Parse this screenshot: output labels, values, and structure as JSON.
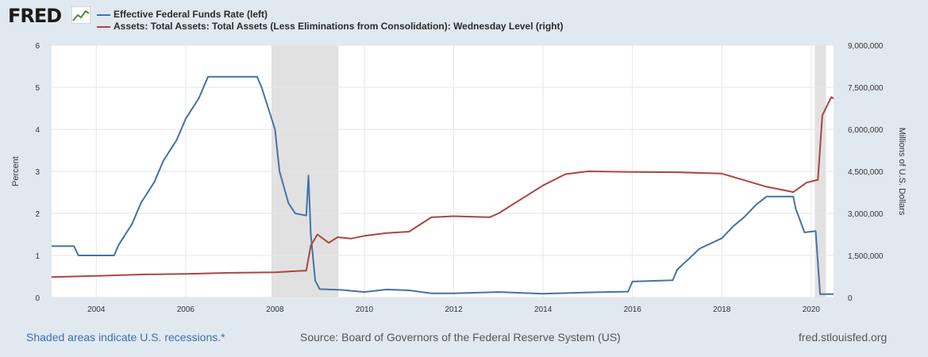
{
  "header": {
    "logo_text": "FRED"
  },
  "footer": {
    "recession_note": "Shaded areas indicate U.S. recessions.*",
    "source": "Source: Board of Governors of the Federal Reserve System (US)",
    "site": "fred.stlouisfed.org"
  },
  "colors": {
    "series_left": "#4572a7",
    "series_right": "#aa4643",
    "recession": "#e1e1e1",
    "plot_bg": "#ffffff",
    "page_bg": "#e1e9f0"
  },
  "chart_data": {
    "type": "line",
    "xlim": [
      2003.0,
      2020.5
    ],
    "x_ticks": [
      "2004",
      "2006",
      "2008",
      "2010",
      "2012",
      "2014",
      "2016",
      "2018",
      "2020"
    ],
    "y_left": {
      "label": "Percent",
      "lim": [
        0,
        6
      ],
      "ticks": [
        "0",
        "1",
        "2",
        "3",
        "4",
        "5",
        "6"
      ]
    },
    "y_right": {
      "label": "Millions of U.S. Dollars",
      "lim": [
        0,
        9000000
      ],
      "ticks": [
        "0",
        "1,500,000",
        "3,000,000",
        "4,500,000",
        "6,000,000",
        "7,500,000",
        "9,000,000"
      ]
    },
    "recessions": [
      [
        2007.92,
        2009.42
      ],
      [
        2020.08,
        2020.33
      ]
    ],
    "grid": true,
    "legend_position": "top-left",
    "series": [
      {
        "name": "Effective Federal Funds Rate (left)",
        "axis": "left",
        "color": "#4572a7",
        "points": [
          [
            2003.0,
            1.22
          ],
          [
            2003.5,
            1.22
          ],
          [
            2003.6,
            1.0
          ],
          [
            2004.4,
            1.0
          ],
          [
            2004.5,
            1.25
          ],
          [
            2004.8,
            1.75
          ],
          [
            2005.0,
            2.25
          ],
          [
            2005.3,
            2.75
          ],
          [
            2005.5,
            3.25
          ],
          [
            2005.8,
            3.75
          ],
          [
            2006.0,
            4.25
          ],
          [
            2006.3,
            4.75
          ],
          [
            2006.5,
            5.25
          ],
          [
            2007.6,
            5.25
          ],
          [
            2007.7,
            5.0
          ],
          [
            2007.85,
            4.5
          ],
          [
            2008.0,
            4.0
          ],
          [
            2008.1,
            3.0
          ],
          [
            2008.3,
            2.25
          ],
          [
            2008.45,
            2.0
          ],
          [
            2008.7,
            1.95
          ],
          [
            2008.75,
            2.9
          ],
          [
            2008.8,
            1.5
          ],
          [
            2008.9,
            0.4
          ],
          [
            2009.0,
            0.2
          ],
          [
            2009.5,
            0.18
          ],
          [
            2010.0,
            0.13
          ],
          [
            2010.5,
            0.19
          ],
          [
            2011.0,
            0.17
          ],
          [
            2011.5,
            0.1
          ],
          [
            2012.0,
            0.1
          ],
          [
            2013.0,
            0.13
          ],
          [
            2014.0,
            0.09
          ],
          [
            2015.0,
            0.12
          ],
          [
            2015.9,
            0.14
          ],
          [
            2016.0,
            0.38
          ],
          [
            2016.9,
            0.41
          ],
          [
            2017.0,
            0.66
          ],
          [
            2017.25,
            0.91
          ],
          [
            2017.5,
            1.16
          ],
          [
            2018.0,
            1.41
          ],
          [
            2018.25,
            1.69
          ],
          [
            2018.5,
            1.91
          ],
          [
            2018.75,
            2.19
          ],
          [
            2019.0,
            2.4
          ],
          [
            2019.6,
            2.4
          ],
          [
            2019.65,
            2.12
          ],
          [
            2019.75,
            1.84
          ],
          [
            2019.85,
            1.55
          ],
          [
            2020.1,
            1.58
          ],
          [
            2020.2,
            0.08
          ],
          [
            2020.5,
            0.08
          ]
        ]
      },
      {
        "name": "Assets: Total Assets: Total Assets (Less Eliminations from Consolidation): Wednesday Level (right)",
        "axis": "right",
        "color": "#aa4643",
        "points": [
          [
            2003.0,
            730000
          ],
          [
            2004.0,
            770000
          ],
          [
            2005.0,
            820000
          ],
          [
            2006.0,
            840000
          ],
          [
            2007.0,
            880000
          ],
          [
            2008.0,
            900000
          ],
          [
            2008.7,
            960000
          ],
          [
            2008.8,
            1850000
          ],
          [
            2008.95,
            2250000
          ],
          [
            2009.2,
            1950000
          ],
          [
            2009.4,
            2150000
          ],
          [
            2009.7,
            2100000
          ],
          [
            2010.0,
            2200000
          ],
          [
            2010.5,
            2300000
          ],
          [
            2011.0,
            2350000
          ],
          [
            2011.5,
            2860000
          ],
          [
            2012.0,
            2900000
          ],
          [
            2012.8,
            2860000
          ],
          [
            2013.0,
            3000000
          ],
          [
            2014.0,
            4000000
          ],
          [
            2014.5,
            4400000
          ],
          [
            2015.0,
            4500000
          ],
          [
            2016.0,
            4480000
          ],
          [
            2017.0,
            4470000
          ],
          [
            2018.0,
            4420000
          ],
          [
            2019.0,
            3950000
          ],
          [
            2019.6,
            3760000
          ],
          [
            2019.9,
            4100000
          ],
          [
            2020.15,
            4200000
          ],
          [
            2020.25,
            6500000
          ],
          [
            2020.45,
            7150000
          ],
          [
            2020.5,
            7100000
          ]
        ]
      }
    ]
  }
}
